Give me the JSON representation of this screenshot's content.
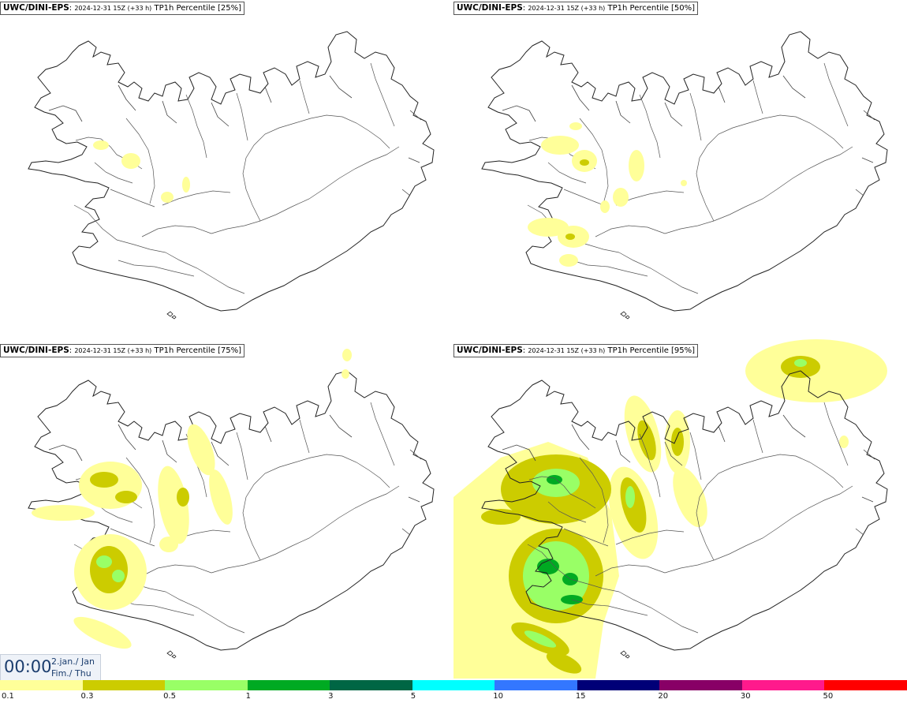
{
  "panels": [
    {
      "model": "UWC/DINI-EPS",
      "run": "2024-12-31 15Z (+33 h)",
      "label": "TP1h Percentile [25%]"
    },
    {
      "model": "UWC/DINI-EPS",
      "run": "2024-12-31 15Z (+33 h)",
      "label": "TP1h Percentile [50%]"
    },
    {
      "model": "UWC/DINI-EPS",
      "run": "2024-12-31 15Z (+33 h)",
      "label": "TP1h Percentile [75%]"
    },
    {
      "model": "UWC/DINI-EPS",
      "run": "2024-12-31 15Z (+33 h)",
      "label": "TP1h Percentile [95%]"
    }
  ],
  "valid_time": {
    "clock": "00:00",
    "date_line1": "2.jan./ Jan",
    "date_line2": "Fim./ Thu"
  },
  "legend": {
    "colors": [
      "#ffff99",
      "#cccc00",
      "#99ff66",
      "#00aa22",
      "#006644",
      "#00ffff",
      "#3377ff",
      "#000077",
      "#880066",
      "#ff1a8c",
      "#ff0000"
    ],
    "ticks": [
      "0.1",
      "0.3",
      "0.5",
      "1",
      "3",
      "5",
      "10",
      "15",
      "20",
      "30",
      "50"
    ]
  },
  "palette": {
    "outline": "#222222",
    "light": "#ffff99",
    "olive": "#cccc00",
    "lightgreen": "#99ff66",
    "green": "#00aa22"
  }
}
